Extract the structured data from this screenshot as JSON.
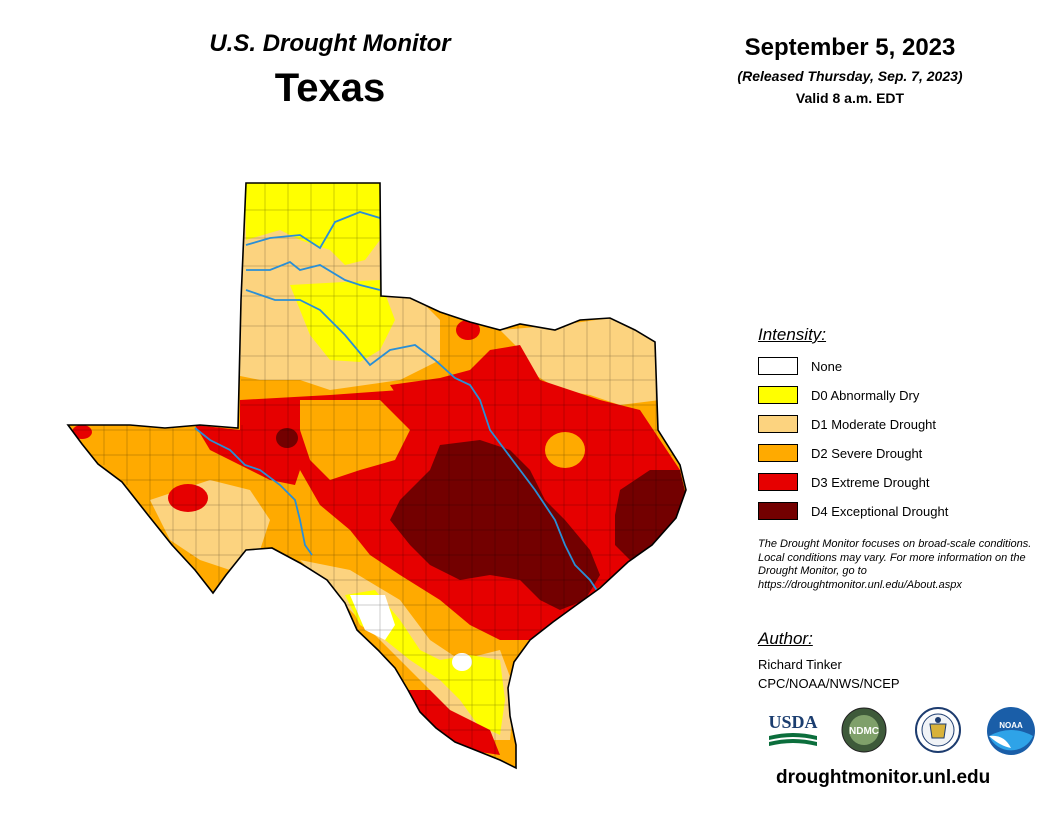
{
  "header": {
    "title": "U.S. Drought Monitor",
    "state": "Texas",
    "date": "September 5, 2023",
    "released": "(Released Thursday, Sep. 7, 2023)",
    "valid": "Valid 8 a.m. EDT"
  },
  "legend": {
    "title": "Intensity:",
    "items": [
      {
        "label": "None",
        "color": "#ffffff"
      },
      {
        "label": "D0 Abnormally Dry",
        "color": "#ffff00"
      },
      {
        "label": "D1 Moderate Drought",
        "color": "#fcd37f"
      },
      {
        "label": "D2 Severe Drought",
        "color": "#ffaa00"
      },
      {
        "label": "D3 Extreme Drought",
        "color": "#e60000"
      },
      {
        "label": "D4 Exceptional Drought",
        "color": "#730000"
      }
    ]
  },
  "note": "The Drought Monitor focuses on broad-scale conditions. Local conditions may vary. For more information on the Drought Monitor, go to https://droughtmonitor.unl.edu/About.aspx",
  "author": {
    "title": "Author:",
    "name": "Richard Tinker",
    "org": "CPC/NOAA/NWS/NCEP"
  },
  "logos": {
    "usda": "USDA",
    "ndmc": "NDMC",
    "noaa": "NOAA"
  },
  "url": "droughtmonitor.unl.edu",
  "river_color": "#2a8fd6"
}
